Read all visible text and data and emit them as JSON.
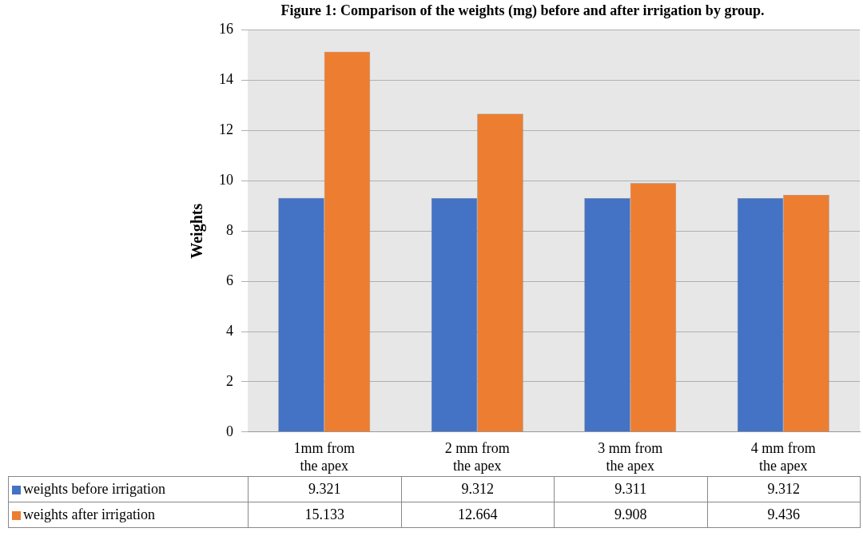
{
  "chart_data": {
    "type": "bar",
    "title": "Figure 1: Comparison of the weights (mg) before and after irrigation by group.",
    "ylabel": "Weights",
    "categories": [
      "1mm from the apex",
      "2 mm from the apex",
      "3 mm from the apex",
      "4 mm from the apex"
    ],
    "series": [
      {
        "name": "weights before irrigation",
        "color": "#4472c4",
        "values": [
          9.321,
          9.312,
          9.311,
          9.312
        ]
      },
      {
        "name": "weights after irrigation",
        "color": "#ed7d31",
        "values": [
          15.133,
          12.664,
          9.908,
          9.436
        ]
      }
    ],
    "ylim": [
      0,
      16
    ],
    "yticks": [
      0,
      2,
      4,
      6,
      8,
      10,
      12,
      14,
      16
    ],
    "grid": "y",
    "legend": "bottom",
    "data_labels": true
  }
}
